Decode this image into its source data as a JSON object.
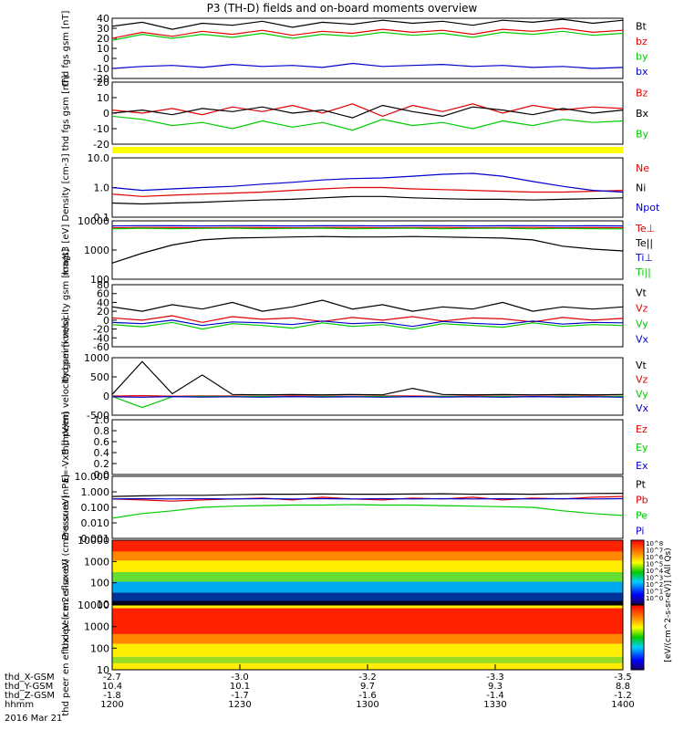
{
  "title": "P3 (TH-D) fields and on-board moments overview",
  "date_label": "2016 Mar 21",
  "colors": {
    "black": "#000000",
    "red": "#e00000",
    "green": "#00cc00",
    "blue": "#0000cc",
    "yellow": "#ffff00"
  },
  "footer": {
    "rows": [
      {
        "label": "thd_X-GSM",
        "values": [
          "-2.7",
          "-3.0",
          "-3.2",
          "-3.3",
          "-3.5"
        ]
      },
      {
        "label": "thd_Y-GSM",
        "values": [
          "10.4",
          "10.1",
          "9.7",
          "9.3",
          "8.8"
        ]
      },
      {
        "label": "thd_Z-GSM",
        "values": [
          "-1.8",
          "-1.7",
          "-1.6",
          "-1.4",
          "-1.2"
        ]
      },
      {
        "label": "hhmm",
        "values": [
          "1200",
          "1230",
          "1300",
          "1330",
          "1400"
        ]
      }
    ]
  },
  "colorbar_label": "[eV/(cm^2-s-sr-eV)] (All Qs)",
  "colorbar_ticks": [
    "10^8",
    "10^7",
    "10^6",
    "10^5",
    "10^4",
    "10^3",
    "10^2",
    "10^1",
    "10^0"
  ],
  "chart_data": [
    {
      "id": "fgs",
      "type": "line",
      "ylabel": "thd fgs gsm [nT]",
      "yticks": [
        "40",
        "30",
        "20",
        "10",
        "0",
        "-10",
        "-20"
      ],
      "ylim": [
        -20,
        40
      ],
      "series": [
        {
          "name": "Bt",
          "color": "#000000",
          "values": [
            32,
            36,
            29,
            35,
            33,
            37,
            31,
            36,
            34,
            38,
            35,
            37,
            33,
            38,
            36,
            39,
            35,
            38
          ]
        },
        {
          "name": "bz",
          "color": "#e00000",
          "values": [
            20,
            26,
            22,
            27,
            24,
            28,
            23,
            27,
            25,
            29,
            26,
            28,
            24,
            29,
            27,
            30,
            26,
            28
          ]
        },
        {
          "name": "by",
          "color": "#00cc00",
          "values": [
            18,
            24,
            20,
            24,
            21,
            25,
            20,
            24,
            22,
            26,
            23,
            25,
            21,
            26,
            24,
            27,
            23,
            25
          ]
        },
        {
          "name": "bx",
          "color": "#0000cc",
          "values": [
            -10,
            -8,
            -7,
            -9,
            -6,
            -8,
            -7,
            -9,
            -5,
            -8,
            -7,
            -6,
            -8,
            -7,
            -9,
            -8,
            -10,
            -9
          ]
        }
      ]
    },
    {
      "id": "fgsdetr",
      "type": "line",
      "ylabel": "thd fgs gsm [nT]",
      "yticks": [
        "20",
        "10",
        "0",
        "-10",
        "-20"
      ],
      "ylim": [
        -20,
        20
      ],
      "series": [
        {
          "name": "Bz",
          "color": "#e00000",
          "values": [
            2,
            0,
            3,
            -1,
            4,
            1,
            5,
            0,
            6,
            -2,
            5,
            1,
            6,
            0,
            5,
            2,
            4,
            3
          ]
        },
        {
          "name": "Bx",
          "color": "#000000",
          "values": [
            0,
            2,
            -1,
            3,
            1,
            4,
            0,
            2,
            -3,
            5,
            1,
            -2,
            4,
            2,
            -1,
            3,
            0,
            2
          ]
        },
        {
          "name": "By",
          "color": "#00cc00",
          "values": [
            -2,
            -4,
            -8,
            -6,
            -10,
            -5,
            -9,
            -6,
            -11,
            -4,
            -8,
            -6,
            -10,
            -5,
            -8,
            -4,
            -6,
            -5
          ]
        }
      ]
    },
    {
      "id": "density",
      "type": "line",
      "ylabel": "Density [cm-3]",
      "yticks": [
        "10.0",
        "1.0",
        "0.1"
      ],
      "log": true,
      "ylim": [
        0.1,
        10
      ],
      "series": [
        {
          "name": "Ne",
          "color": "#e00000",
          "values": [
            0.6,
            0.5,
            0.55,
            0.6,
            0.65,
            0.7,
            0.8,
            0.9,
            1.0,
            1.0,
            0.9,
            0.85,
            0.8,
            0.75,
            0.7,
            0.7,
            0.75,
            0.8
          ]
        },
        {
          "name": "Ni",
          "color": "#000000",
          "values": [
            0.3,
            0.28,
            0.3,
            0.32,
            0.35,
            0.38,
            0.4,
            0.45,
            0.5,
            0.5,
            0.45,
            0.42,
            0.4,
            0.4,
            0.38,
            0.4,
            0.42,
            0.45
          ]
        },
        {
          "name": "Npot",
          "color": "#0000cc",
          "values": [
            1.0,
            0.8,
            0.9,
            1.0,
            1.1,
            1.3,
            1.5,
            1.8,
            2.0,
            2.1,
            2.4,
            2.8,
            3.0,
            2.4,
            1.6,
            1.1,
            0.8,
            0.7
          ]
        }
      ]
    },
    {
      "id": "magt3",
      "type": "line",
      "ylabel": "magt3 [eV]",
      "yticks": [
        "10000",
        "1000",
        "100"
      ],
      "log": true,
      "ylim": [
        30,
        10000
      ],
      "series": [
        {
          "name": "Te⊥",
          "color": "#e00000",
          "values": [
            5000,
            5200,
            5100,
            5000,
            5200,
            5100,
            5000,
            5100,
            5200,
            5000,
            5100,
            5200,
            5000,
            5100,
            5200,
            5000,
            5100,
            5000
          ]
        },
        {
          "name": "Te||",
          "color": "#000000",
          "values": [
            150,
            400,
            900,
            1500,
            1800,
            1900,
            2000,
            2100,
            2000,
            2000,
            2100,
            2000,
            1900,
            1800,
            1500,
            800,
            600,
            500
          ]
        },
        {
          "name": "Ti⊥",
          "color": "#0000cc",
          "values": [
            6000,
            6200,
            6100,
            6000,
            6200,
            6100,
            6000,
            6100,
            6200,
            6000,
            6100,
            6200,
            6000,
            6100,
            6200,
            6000,
            6100,
            6000
          ]
        },
        {
          "name": "Ti||",
          "color": "#00cc00",
          "values": [
            4500,
            4800,
            4600,
            4700,
            4800,
            4600,
            4700,
            4800,
            4600,
            4700,
            4800,
            4600,
            4700,
            4800,
            4600,
            4700,
            4600,
            4500
          ]
        }
      ]
    },
    {
      "id": "peim",
      "type": "line",
      "ylabel": "thd peim velocity gsm [km/s]",
      "yticks": [
        "80",
        "60",
        "40",
        "20",
        "0",
        "-20",
        "-40",
        "-60"
      ],
      "ylim": [
        -60,
        80
      ],
      "series": [
        {
          "name": "Vt",
          "color": "#000000",
          "values": [
            30,
            20,
            35,
            25,
            40,
            20,
            30,
            45,
            25,
            35,
            20,
            30,
            25,
            40,
            20,
            30,
            25,
            30
          ]
        },
        {
          "name": "Vz",
          "color": "#e00000",
          "values": [
            5,
            0,
            10,
            -5,
            8,
            2,
            5,
            -3,
            6,
            0,
            8,
            -2,
            5,
            3,
            -4,
            6,
            0,
            4
          ]
        },
        {
          "name": "Vy",
          "color": "#00cc00",
          "values": [
            -10,
            -15,
            -5,
            -20,
            -8,
            -12,
            -18,
            -6,
            -14,
            -10,
            -20,
            -8,
            -12,
            -16,
            -6,
            -14,
            -10,
            -12
          ]
        },
        {
          "name": "Vx",
          "color": "#0000cc",
          "values": [
            -5,
            -8,
            0,
            -12,
            -4,
            -6,
            -10,
            -2,
            -8,
            -5,
            -14,
            -3,
            -7,
            -10,
            -2,
            -9,
            -5,
            -6
          ]
        }
      ]
    },
    {
      "id": "peem",
      "type": "line",
      "ylabel": "thd peem velocity gsm [km/s]",
      "yticks": [
        "1000",
        "500",
        "0",
        "-500"
      ],
      "ylim": [
        -500,
        1000
      ],
      "series": [
        {
          "name": "Vt",
          "color": "#000000",
          "values": [
            40,
            900,
            60,
            550,
            40,
            30,
            40,
            30,
            40,
            30,
            200,
            40,
            30,
            40,
            30,
            40,
            30,
            40
          ]
        },
        {
          "name": "Vz",
          "color": "#e00000",
          "values": [
            0,
            10,
            -5,
            5,
            0,
            -5,
            5,
            0,
            -5,
            5,
            0,
            -5,
            5,
            0,
            -5,
            5,
            0,
            -5
          ]
        },
        {
          "name": "Vy",
          "color": "#00cc00",
          "values": [
            -10,
            -300,
            -20,
            -10,
            -15,
            -10,
            -20,
            -10,
            -15,
            -10,
            -20,
            -10,
            -15,
            -10,
            -20,
            -10,
            -15,
            -10
          ]
        },
        {
          "name": "Vx",
          "color": "#0000cc",
          "values": [
            -20,
            -30,
            -15,
            -25,
            -20,
            -30,
            -15,
            -25,
            -20,
            -30,
            -15,
            -25,
            -20,
            -30,
            -15,
            -25,
            -20,
            -30
          ]
        }
      ]
    },
    {
      "id": "vxb",
      "type": "line",
      "ylabel": "E=-VxB [mV/m]",
      "yticks": [
        "1.0",
        "0.8",
        "0.6",
        "0.4",
        "0.2",
        "0.0"
      ],
      "ylim": [
        0,
        1
      ],
      "series": [
        {
          "name": "Ez",
          "color": "#e00000",
          "values": []
        },
        {
          "name": "Ey",
          "color": "#00cc00",
          "values": []
        },
        {
          "name": "Ex",
          "color": "#0000cc",
          "values": []
        }
      ]
    },
    {
      "id": "pressure",
      "type": "line",
      "ylabel": "Pressure [nPa]",
      "yticks": [
        "10.000",
        "1.000",
        "0.100",
        "0.010",
        "0.001"
      ],
      "log": true,
      "ylim": [
        0.001,
        10
      ],
      "series": [
        {
          "name": "Pt",
          "color": "#000000",
          "values": [
            0.5,
            0.55,
            0.6,
            0.6,
            0.65,
            0.7,
            0.7,
            0.72,
            0.7,
            0.7,
            0.72,
            0.75,
            0.7,
            0.72,
            0.7,
            0.75,
            0.78,
            0.8
          ]
        },
        {
          "name": "Pb",
          "color": "#e00000",
          "values": [
            0.35,
            0.3,
            0.25,
            0.3,
            0.35,
            0.4,
            0.3,
            0.45,
            0.35,
            0.3,
            0.4,
            0.35,
            0.45,
            0.3,
            0.4,
            0.35,
            0.45,
            0.5
          ]
        },
        {
          "name": "Pe",
          "color": "#00cc00",
          "values": [
            0.02,
            0.04,
            0.06,
            0.1,
            0.12,
            0.13,
            0.14,
            0.14,
            0.15,
            0.14,
            0.14,
            0.13,
            0.12,
            0.11,
            0.1,
            0.06,
            0.04,
            0.03
          ]
        },
        {
          "name": "Pi",
          "color": "#0000cc",
          "values": [
            0.35,
            0.36,
            0.35,
            0.36,
            0.35,
            0.36,
            0.35,
            0.36,
            0.35,
            0.36,
            0.35,
            0.36,
            0.35,
            0.36,
            0.35,
            0.36,
            0.35,
            0.36
          ]
        }
      ]
    },
    {
      "id": "peir",
      "type": "heatmap",
      "ylabel": "thd peir en eflux eV (cm2-s-sr-eV)",
      "yticks": [
        "10000",
        "1000",
        "100",
        "10"
      ]
    },
    {
      "id": "peer",
      "type": "heatmap",
      "ylabel": "thd peer en eflux eV (cm2-s-sr-eV)",
      "yticks": [
        "10000",
        "1000",
        "100",
        "10"
      ]
    }
  ]
}
